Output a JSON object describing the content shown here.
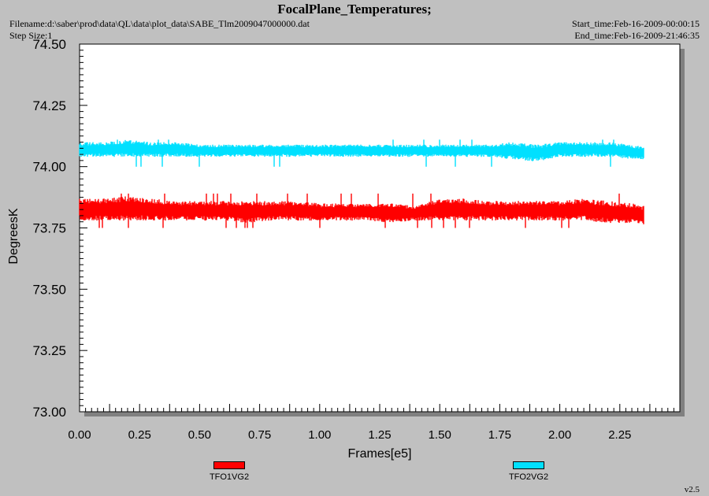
{
  "header": {
    "title": "FocalPlane_Temperatures;",
    "filename": "Filename:d:\\saber\\prod\\data\\QL\\data\\plot_data\\SABE_Tlm2009047000000.dat",
    "step_size": "Step Size:1",
    "start_time": "Start_time:Feb-16-2009-00:00:15",
    "end_time": "End_time:Feb-16-2009-21:46:35"
  },
  "version": "v2.5",
  "chart_data": {
    "type": "line",
    "title": "FocalPlane_Temperatures;",
    "xlabel": "Frames[e5]",
    "ylabel": "DegreesK",
    "xlim": [
      0.0,
      2.5
    ],
    "ylim": [
      73.0,
      74.5
    ],
    "x_ticks": [
      "0.00",
      "0.25",
      "0.50",
      "0.75",
      "1.00",
      "1.25",
      "1.50",
      "1.75",
      "2.00",
      "2.25"
    ],
    "y_ticks": [
      "73.00",
      "73.25",
      "73.50",
      "73.75",
      "74.00",
      "74.25",
      "74.50"
    ],
    "grid": false,
    "legend_position": "bottom",
    "x_range": [
      0.0,
      2.35
    ],
    "series": [
      {
        "name": "TFO1VG2",
        "color": "#ff0000",
        "mean": 73.82,
        "band": [
          73.78,
          73.86
        ],
        "extremes": [
          73.75,
          73.89
        ],
        "x": [
          0.0,
          0.1,
          0.2,
          0.3,
          0.4,
          0.5,
          0.6,
          0.7,
          0.8,
          0.9,
          1.0,
          1.1,
          1.2,
          1.3,
          1.4,
          1.5,
          1.6,
          1.7,
          1.8,
          1.9,
          2.0,
          2.1,
          2.2,
          2.3,
          2.35
        ],
        "low": [
          73.78,
          73.78,
          73.78,
          73.78,
          73.78,
          73.78,
          73.78,
          73.77,
          73.78,
          73.78,
          73.78,
          73.78,
          73.78,
          73.77,
          73.78,
          73.78,
          73.78,
          73.78,
          73.78,
          73.78,
          73.78,
          73.78,
          73.77,
          73.77,
          73.76
        ],
        "high": [
          73.87,
          73.87,
          73.88,
          73.87,
          73.86,
          73.86,
          73.86,
          73.86,
          73.86,
          73.86,
          73.85,
          73.85,
          73.85,
          73.85,
          73.84,
          73.87,
          73.87,
          73.86,
          73.86,
          73.86,
          73.86,
          73.87,
          73.86,
          73.85,
          73.84
        ]
      },
      {
        "name": "TFO2VG2",
        "color": "#00e0ff",
        "mean": 74.07,
        "band": [
          74.04,
          74.1
        ],
        "extremes": [
          74.0,
          74.11
        ],
        "x": [
          0.0,
          0.1,
          0.2,
          0.3,
          0.4,
          0.5,
          0.6,
          0.7,
          0.8,
          0.9,
          1.0,
          1.1,
          1.2,
          1.3,
          1.4,
          1.5,
          1.6,
          1.7,
          1.8,
          1.9,
          2.0,
          2.1,
          2.2,
          2.3,
          2.35
        ],
        "low": [
          74.04,
          74.04,
          74.04,
          74.04,
          74.04,
          74.04,
          74.04,
          74.04,
          74.04,
          74.04,
          74.04,
          74.04,
          74.04,
          74.04,
          74.04,
          74.04,
          74.04,
          74.04,
          74.03,
          74.02,
          74.04,
          74.04,
          74.04,
          74.03,
          74.03
        ],
        "high": [
          74.1,
          74.1,
          74.11,
          74.1,
          74.1,
          74.09,
          74.09,
          74.09,
          74.09,
          74.09,
          74.09,
          74.09,
          74.09,
          74.09,
          74.09,
          74.09,
          74.09,
          74.09,
          74.1,
          74.09,
          74.1,
          74.1,
          74.1,
          74.09,
          74.08
        ]
      }
    ]
  }
}
